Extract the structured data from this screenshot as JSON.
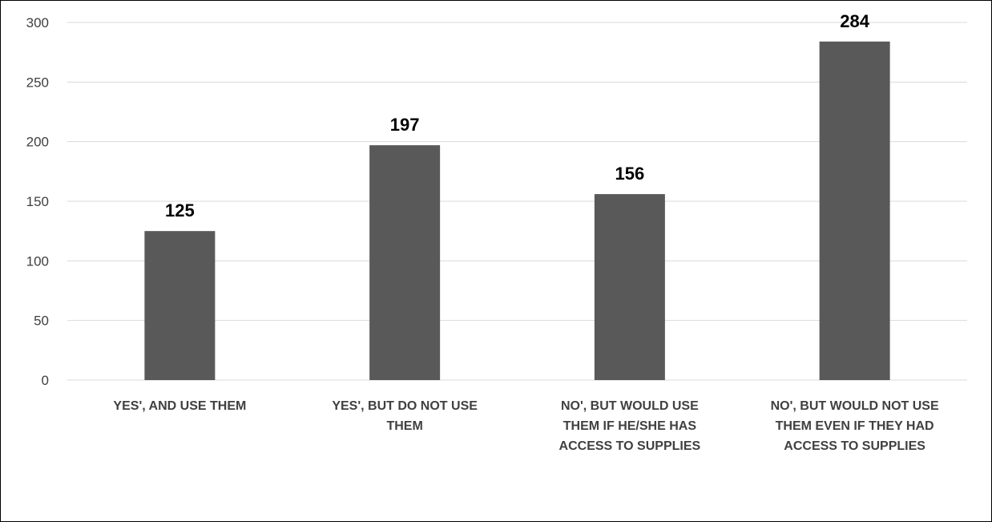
{
  "colors": {
    "bar": "#595959",
    "gridline": "#d9d9d9",
    "tick_text": "#404040",
    "data_label": "#000000",
    "frame": "#000000"
  },
  "chart_data": {
    "type": "bar",
    "title": "",
    "xlabel": "",
    "ylabel": "",
    "categories": [
      "YES', AND USE THEM",
      "YES', BUT DO NOT USE THEM",
      "NO', BUT WOULD USE THEM IF HE/SHE HAS ACCESS TO SUPPLIES",
      "NO', BUT WOULD NOT USE THEM EVEN IF THEY HAD ACCESS TO SUPPLIES"
    ],
    "category_lines": [
      [
        "YES', AND USE THEM"
      ],
      [
        "YES', BUT DO NOT USE",
        "THEM"
      ],
      [
        "NO', BUT WOULD USE",
        "THEM IF HE/SHE HAS",
        "ACCESS TO SUPPLIES"
      ],
      [
        "NO', BUT WOULD NOT USE",
        "THEM EVEN IF THEY HAD",
        "ACCESS TO SUPPLIES"
      ]
    ],
    "values": [
      125,
      197,
      156,
      284
    ],
    "data_labels": [
      "125",
      "197",
      "156",
      "284"
    ],
    "ylim": [
      0,
      300
    ],
    "yticks": [
      0,
      50,
      100,
      150,
      200,
      250,
      300
    ],
    "ytick_labels": [
      "0",
      "50",
      "100",
      "150",
      "200",
      "250",
      "300"
    ],
    "grid": true,
    "legend": "none"
  }
}
